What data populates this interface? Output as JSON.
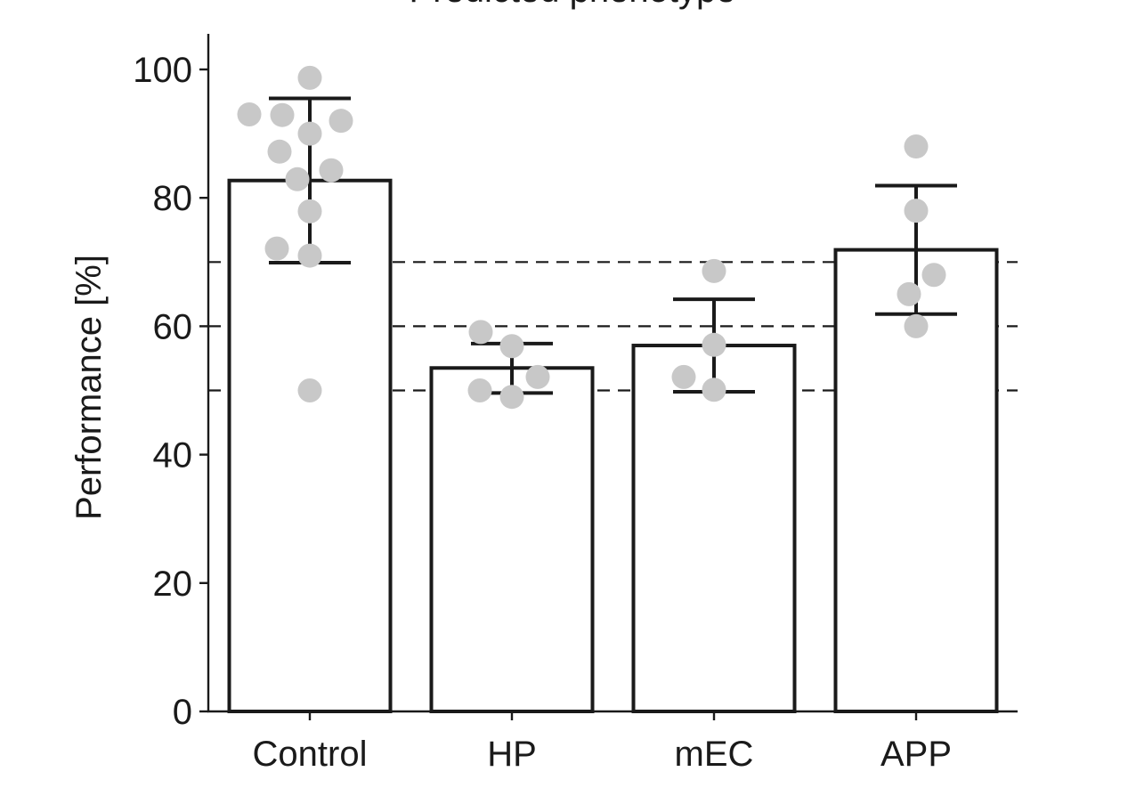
{
  "chart_data": {
    "type": "bar",
    "title": "Predicted phenotype",
    "xlabel": "",
    "ylabel": "Performance [%]",
    "ylim": [
      0,
      105
    ],
    "yticks": [
      0,
      20,
      40,
      60,
      80,
      100
    ],
    "categories": [
      "Control",
      "HP",
      "mEC",
      "APP"
    ],
    "values": [
      82.7,
      53.5,
      57,
      71.9
    ],
    "error_low": [
      69.9,
      49.6,
      49.8,
      61.9
    ],
    "error_high": [
      95.5,
      57.3,
      64.2,
      81.9
    ],
    "points": [
      [
        98.7,
        93.0,
        92.9,
        92.0,
        90.0,
        87.2,
        84.3,
        82.9,
        77.9,
        72.1,
        71.0,
        50.0
      ],
      [
        59.1,
        56.9,
        52.1,
        50.0,
        49.0
      ],
      [
        68.6,
        57.1,
        52.1,
        50.1
      ],
      [
        88.0,
        78.0,
        68.0,
        65.0,
        60.0
      ]
    ],
    "reference_lines": [
      50,
      60,
      70
    ],
    "grid": false,
    "colors": {
      "bar_fill": "#ffffff",
      "bar_stroke": "#1a1a1a",
      "points": "#c8c8c8",
      "error_bars": "#1a1a1a",
      "reference_lines": "#1a1a1a"
    }
  }
}
